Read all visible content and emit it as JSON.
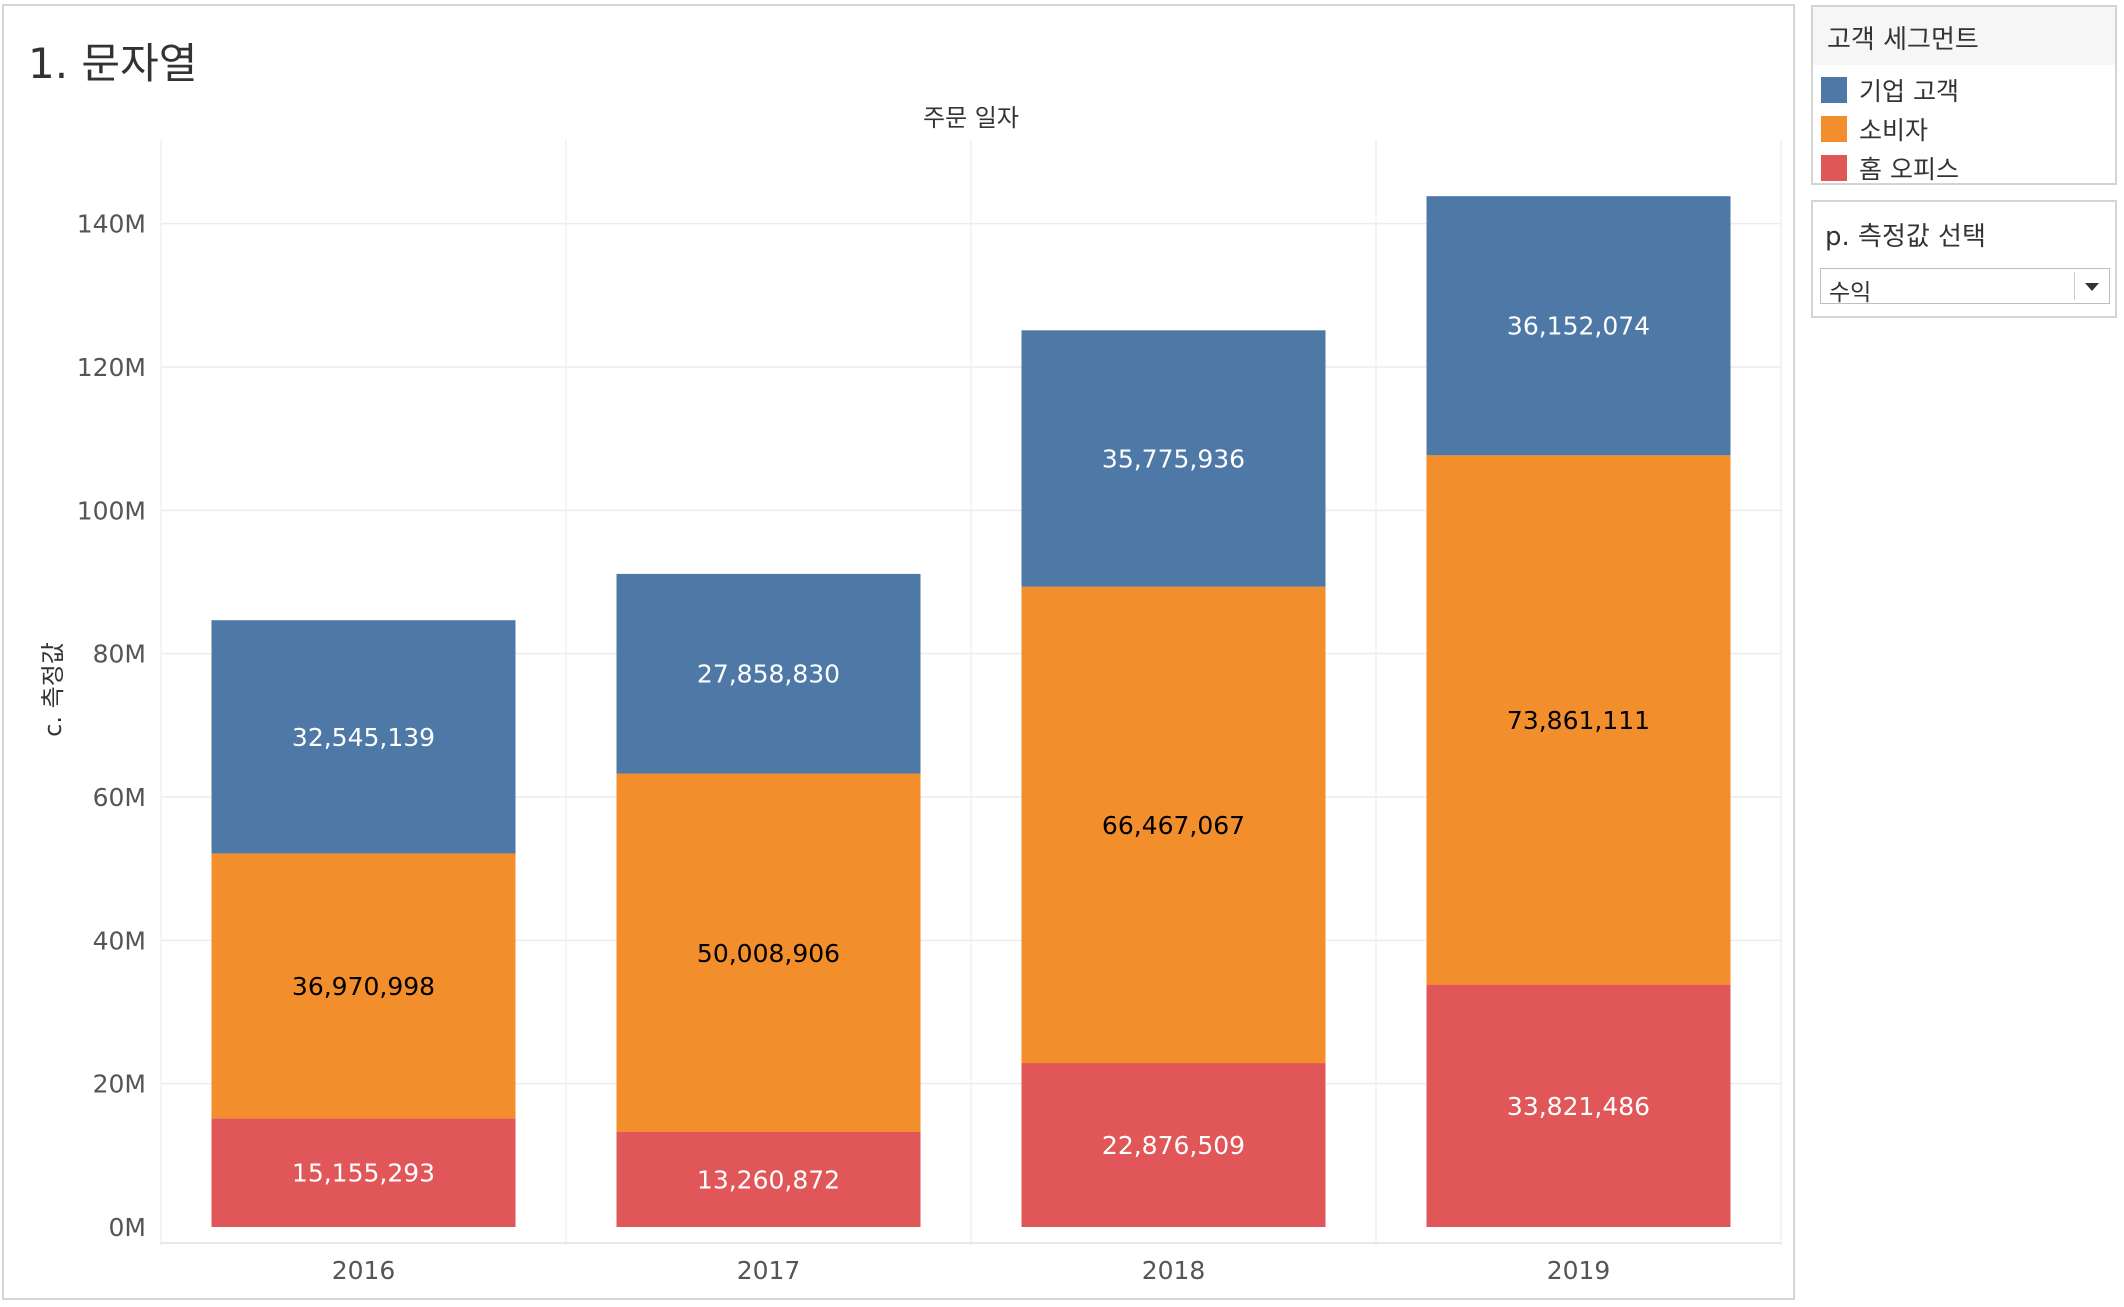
{
  "sheet_title": "1. 문자열",
  "legend": {
    "title": "고객 세그먼트",
    "items": [
      {
        "label": "기업 고객",
        "color": "#4e79a7"
      },
      {
        "label": "소비자",
        "color": "#f28e2b"
      },
      {
        "label": "홈 오피스",
        "color": "#e15759"
      }
    ]
  },
  "parameter": {
    "title": "p. 측정값 선택",
    "value": "수익"
  },
  "chart_data": {
    "type": "bar",
    "stacked": true,
    "title": "주문 일자",
    "xlabel": "",
    "ylabel": "c. 측정값",
    "categories": [
      "2016",
      "2017",
      "2018",
      "2019"
    ],
    "ylim": [
      0,
      150000000
    ],
    "yticks": [
      0,
      20000000,
      40000000,
      60000000,
      80000000,
      100000000,
      120000000,
      140000000
    ],
    "ytick_labels": [
      "0M",
      "20M",
      "40M",
      "60M",
      "80M",
      "100M",
      "120M",
      "140M"
    ],
    "series": [
      {
        "name": "홈 오피스",
        "color": "#e15759",
        "label_color": "#ffffff",
        "values": [
          15155293,
          13260872,
          22876509,
          33821486
        ],
        "labels": [
          "15,155,293",
          "13,260,872",
          "22,876,509",
          "33,821,486"
        ]
      },
      {
        "name": "소비자",
        "color": "#f28e2b",
        "label_color": "#000000",
        "values": [
          36970998,
          50008906,
          66467067,
          73861111
        ],
        "labels": [
          "36,970,998",
          "50,008,906",
          "66,467,067",
          "73,861,111"
        ]
      },
      {
        "name": "기업 고객",
        "color": "#4e79a7",
        "label_color": "#ffffff",
        "values": [
          32545139,
          27858830,
          35775936,
          36152074
        ],
        "labels": [
          "32,545,139",
          "27,858,830",
          "35,775,936",
          "36,152,074"
        ]
      }
    ]
  }
}
